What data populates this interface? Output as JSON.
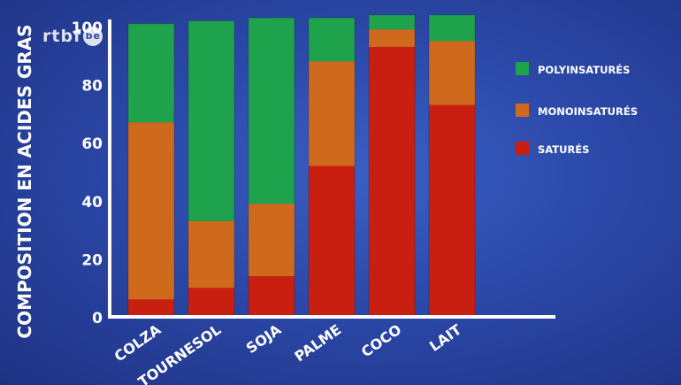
{
  "logo": {
    "text": "rtbf",
    "badge": "be"
  },
  "chart_data": {
    "type": "bar",
    "stacked": true,
    "ylabel": "COMPOSITION EN ACIDES GRAS",
    "xlabel": "",
    "title": "",
    "ylim": [
      0,
      100
    ],
    "yticks": [
      0,
      20,
      40,
      60,
      80,
      100
    ],
    "categories": [
      "COLZA",
      "TOURNESOL",
      "SOJA",
      "PALME",
      "COCO",
      "LAIT"
    ],
    "series": [
      {
        "name": "SATURÉS",
        "color": "#c81f10",
        "values": [
          6,
          10,
          14,
          52,
          93,
          73
        ]
      },
      {
        "name": "MONOINSATURÉS",
        "color": "#cf6a1c",
        "values": [
          61,
          23,
          25,
          36,
          6,
          22
        ]
      },
      {
        "name": "POLYINSATURÉS",
        "color": "#1fa24c",
        "values": [
          34,
          69,
          64,
          15,
          5,
          9
        ]
      }
    ],
    "legend_order": [
      "POLYINSATURÉS",
      "MONOINSATURÉS",
      "SATURÉS"
    ],
    "legend_position": "right",
    "grid": false
  }
}
